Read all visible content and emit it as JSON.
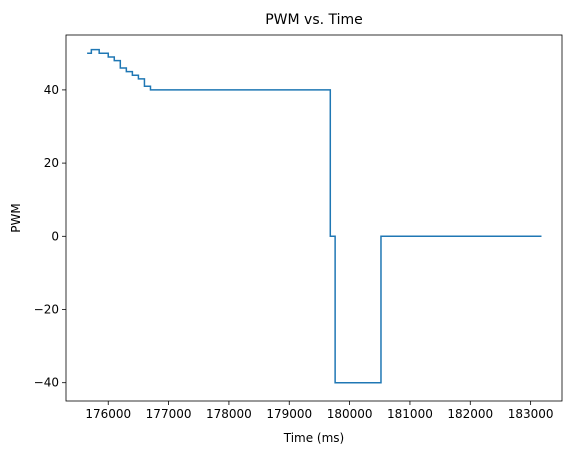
{
  "chart_data": {
    "type": "line",
    "title": "PWM vs. Time",
    "xlabel": "Time (ms)",
    "ylabel": "PWM",
    "xlim": [
      175300,
      183520
    ],
    "ylim": [
      -45,
      55
    ],
    "xticks": [
      176000,
      177000,
      178000,
      179000,
      180000,
      181000,
      182000,
      183000
    ],
    "yticks": [
      -40,
      -20,
      0,
      20,
      40
    ],
    "xtick_labels": [
      "176000",
      "177000",
      "178000",
      "179000",
      "180000",
      "181000",
      "182000",
      "183000"
    ],
    "ytick_labels": [
      "−40",
      "−20",
      "0",
      "20",
      "40"
    ],
    "grid": false,
    "step": "post",
    "series": [
      {
        "color": "#1f77b4",
        "x": [
          175650,
          175720,
          175850,
          176000,
          176100,
          176200,
          176300,
          176400,
          176500,
          176600,
          176700,
          179680,
          179760,
          180520,
          183180
        ],
        "y": [
          50,
          51,
          50,
          49,
          48,
          46,
          45,
          44,
          43,
          41,
          40,
          0,
          -40,
          0,
          0
        ]
      }
    ]
  }
}
